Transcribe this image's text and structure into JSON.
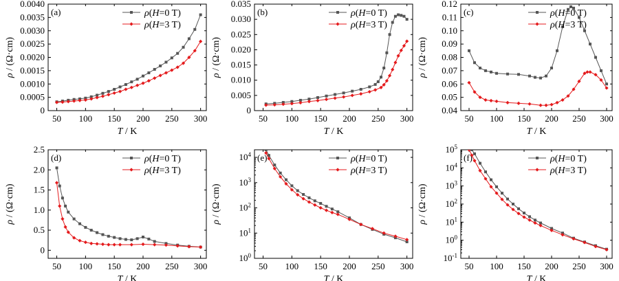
{
  "colors": {
    "zero_field": "#555555",
    "three_tesla": "#e41a1c"
  },
  "charts": [
    {
      "id": "a",
      "panel_label": "(a)",
      "type": "line",
      "yscale": "linear",
      "xlabel": "T / K",
      "ylabel": "ρ / (Ω·cm)",
      "xlim": [
        35,
        310
      ],
      "ylim": [
        0,
        0.004
      ],
      "xticks": [
        50,
        100,
        150,
        200,
        250,
        300
      ],
      "xtick_labels": [
        "50",
        "100",
        "150",
        "200",
        "250",
        "300"
      ],
      "yticks": [
        0,
        0.0005,
        0.001,
        0.0015,
        0.002,
        0.0025,
        0.003,
        0.0035,
        0.004
      ],
      "ytick_labels": [
        "0",
        "0.0005",
        "0.0010",
        "0.0015",
        "0.0020",
        "0.0025",
        "0.0030",
        "0.0035",
        "0.0040"
      ],
      "legend": {
        "position": "top-right",
        "entries": [
          "ρ(H=0 T)",
          "ρ(H=3 T)"
        ]
      },
      "series": [
        {
          "name": "ρ(H=0 T)",
          "x": [
            50,
            60,
            70,
            80,
            90,
            100,
            110,
            120,
            130,
            140,
            150,
            160,
            170,
            180,
            190,
            200,
            210,
            220,
            230,
            240,
            250,
            260,
            270,
            280,
            290,
            300
          ],
          "y": [
            0.00033,
            0.00036,
            0.00039,
            0.00042,
            0.00044,
            0.00047,
            0.00052,
            0.00058,
            0.00065,
            0.00072,
            0.0008,
            0.00089,
            0.00098,
            0.00108,
            0.00118,
            0.0013,
            0.00142,
            0.00155,
            0.00168,
            0.00182,
            0.00198,
            0.00215,
            0.00238,
            0.0027,
            0.00305,
            0.0036
          ]
        },
        {
          "name": "ρ(H=3 T)",
          "x": [
            50,
            60,
            70,
            80,
            90,
            100,
            110,
            120,
            130,
            140,
            150,
            160,
            170,
            180,
            190,
            200,
            210,
            220,
            230,
            240,
            250,
            260,
            270,
            280,
            290,
            300
          ],
          "y": [
            0.00031,
            0.00032,
            0.00034,
            0.00036,
            0.00038,
            0.0004,
            0.00044,
            0.00049,
            0.00054,
            0.0006,
            0.00066,
            0.00072,
            0.0008,
            0.00087,
            0.00095,
            0.00103,
            0.00112,
            0.00122,
            0.00132,
            0.00142,
            0.00152,
            0.00163,
            0.00178,
            0.002,
            0.00225,
            0.0026
          ]
        }
      ]
    },
    {
      "id": "b",
      "panel_label": "(b)",
      "type": "line",
      "yscale": "linear",
      "xlabel": "T / K",
      "ylabel": "ρ / (Ω·cm)",
      "xlim": [
        35,
        310
      ],
      "ylim": [
        0,
        0.035
      ],
      "xticks": [
        50,
        100,
        150,
        200,
        250,
        300
      ],
      "xtick_labels": [
        "50",
        "100",
        "150",
        "200",
        "250",
        "300"
      ],
      "yticks": [
        0,
        0.005,
        0.01,
        0.015,
        0.02,
        0.025,
        0.03,
        0.035
      ],
      "ytick_labels": [
        "0",
        "0.005",
        "0.010",
        "0.015",
        "0.020",
        "0.025",
        "0.030",
        "0.035"
      ],
      "legend": {
        "position": "top-right",
        "entries": [
          "ρ(H=0 T)",
          "ρ(H=3 T)"
        ]
      },
      "series": [
        {
          "name": "ρ(H=0 T)",
          "x": [
            55,
            70,
            85,
            100,
            115,
            130,
            145,
            160,
            175,
            190,
            205,
            220,
            235,
            245,
            250,
            255,
            260,
            265,
            270,
            275,
            280,
            285,
            290,
            295,
            300
          ],
          "y": [
            0.0022,
            0.0024,
            0.0027,
            0.003,
            0.0034,
            0.0038,
            0.0043,
            0.0048,
            0.0053,
            0.0058,
            0.0064,
            0.007,
            0.0078,
            0.0086,
            0.0095,
            0.011,
            0.014,
            0.019,
            0.025,
            0.029,
            0.031,
            0.0315,
            0.0313,
            0.031,
            0.03
          ]
        },
        {
          "name": "ρ(H=3 T)",
          "x": [
            55,
            70,
            85,
            100,
            115,
            130,
            145,
            160,
            175,
            190,
            205,
            220,
            235,
            245,
            255,
            260,
            265,
            270,
            275,
            280,
            285,
            290,
            295,
            300
          ],
          "y": [
            0.0018,
            0.0019,
            0.0021,
            0.0023,
            0.0026,
            0.003,
            0.0033,
            0.0037,
            0.0041,
            0.0045,
            0.005,
            0.0055,
            0.0062,
            0.0068,
            0.0076,
            0.0085,
            0.0098,
            0.0115,
            0.0135,
            0.0158,
            0.018,
            0.0198,
            0.0213,
            0.0228
          ]
        }
      ]
    },
    {
      "id": "c",
      "panel_label": "(c)",
      "type": "line",
      "yscale": "linear",
      "xlabel": "T / K",
      "ylabel": "ρ / (Ω·cm)",
      "xlim": [
        35,
        310
      ],
      "ylim": [
        0.04,
        0.12
      ],
      "xticks": [
        50,
        100,
        150,
        200,
        250,
        300
      ],
      "xtick_labels": [
        "50",
        "100",
        "150",
        "200",
        "250",
        "300"
      ],
      "yticks": [
        0.04,
        0.05,
        0.06,
        0.07,
        0.08,
        0.09,
        0.1,
        0.11,
        0.12
      ],
      "ytick_labels": [
        "0.04",
        "0.05",
        "0.06",
        "0.07",
        "0.08",
        "0.09",
        "0.10",
        "0.11",
        "0.12"
      ],
      "legend": {
        "position": "top-right",
        "entries": [
          "ρ(H=0 T)",
          "ρ(H=3 T)"
        ]
      },
      "series": [
        {
          "name": "ρ(H=0 T)",
          "x": [
            50,
            60,
            70,
            80,
            90,
            100,
            120,
            140,
            160,
            170,
            180,
            190,
            200,
            210,
            220,
            230,
            235,
            240,
            250,
            260,
            270,
            280,
            290,
            300
          ],
          "y": [
            0.085,
            0.076,
            0.072,
            0.07,
            0.069,
            0.068,
            0.0675,
            0.0672,
            0.066,
            0.065,
            0.0645,
            0.066,
            0.072,
            0.085,
            0.103,
            0.116,
            0.118,
            0.117,
            0.11,
            0.1,
            0.09,
            0.08,
            0.07,
            0.06
          ]
        },
        {
          "name": "ρ(H=3 T)",
          "x": [
            50,
            60,
            70,
            80,
            90,
            100,
            120,
            140,
            160,
            180,
            190,
            200,
            210,
            220,
            230,
            240,
            250,
            260,
            265,
            270,
            280,
            290,
            300
          ],
          "y": [
            0.061,
            0.054,
            0.05,
            0.048,
            0.0475,
            0.047,
            0.046,
            0.0455,
            0.045,
            0.044,
            0.044,
            0.0445,
            0.046,
            0.048,
            0.051,
            0.056,
            0.062,
            0.068,
            0.069,
            0.069,
            0.067,
            0.063,
            0.057
          ]
        }
      ]
    },
    {
      "id": "d",
      "panel_label": "(d)",
      "type": "line",
      "yscale": "linear",
      "xlabel": "T / K",
      "ylabel": "ρ / (Ω·cm)",
      "xlim": [
        35,
        310
      ],
      "ylim": [
        -0.2,
        2.5
      ],
      "xticks": [
        50,
        100,
        150,
        200,
        250,
        300
      ],
      "xtick_labels": [
        "50",
        "100",
        "150",
        "200",
        "250",
        "300"
      ],
      "yticks": [
        0,
        0.5,
        1.0,
        1.5,
        2.0,
        2.5
      ],
      "ytick_labels": [
        "0",
        "0.5",
        "1.0",
        "1.5",
        "2.0",
        "2.5"
      ],
      "legend": {
        "position": "top-right",
        "entries": [
          "ρ(H=0 T)",
          "ρ(H=3 T)"
        ]
      },
      "series": [
        {
          "name": "ρ(H=0 T)",
          "x": [
            50,
            55,
            60,
            65,
            70,
            80,
            90,
            100,
            110,
            120,
            130,
            140,
            150,
            160,
            170,
            180,
            190,
            200,
            210,
            220,
            240,
            260,
            280,
            300
          ],
          "y": [
            2.05,
            1.6,
            1.3,
            1.1,
            0.95,
            0.78,
            0.66,
            0.57,
            0.5,
            0.44,
            0.39,
            0.35,
            0.32,
            0.29,
            0.27,
            0.26,
            0.29,
            0.33,
            0.28,
            0.22,
            0.17,
            0.13,
            0.1,
            0.08
          ]
        },
        {
          "name": "ρ(H=3 T)",
          "x": [
            50,
            55,
            60,
            65,
            70,
            80,
            90,
            100,
            110,
            120,
            130,
            140,
            150,
            160,
            180,
            200,
            220,
            240,
            260,
            280,
            300
          ],
          "y": [
            1.68,
            1.1,
            0.78,
            0.58,
            0.45,
            0.31,
            0.24,
            0.2,
            0.17,
            0.16,
            0.15,
            0.14,
            0.14,
            0.14,
            0.14,
            0.15,
            0.14,
            0.13,
            0.11,
            0.09,
            0.08
          ]
        }
      ]
    },
    {
      "id": "e",
      "panel_label": "(e)",
      "type": "line",
      "yscale": "log",
      "xlabel": "T / K",
      "ylabel": "ρ / (Ω·cm)",
      "xlim": [
        35,
        310
      ],
      "ylim": [
        1,
        20000
      ],
      "xticks": [
        50,
        100,
        150,
        200,
        250,
        300
      ],
      "xtick_labels": [
        "50",
        "100",
        "150",
        "200",
        "250",
        "300"
      ],
      "yticks": [
        1,
        10,
        100,
        1000,
        10000
      ],
      "ytick_labels": [
        "10^0",
        "10^1",
        "10^2",
        "10^3",
        "10^4"
      ],
      "legend": {
        "position": "top-right",
        "entries": [
          "ρ(H=0 T)",
          "ρ(H=3 T)"
        ]
      },
      "series": [
        {
          "name": "ρ(H=0 T)",
          "x": [
            55,
            60,
            70,
            80,
            90,
            100,
            110,
            120,
            130,
            140,
            150,
            160,
            170,
            180,
            200,
            220,
            240,
            260,
            280,
            300
          ],
          "y": [
            20000,
            12000,
            5000,
            2400,
            1300,
            750,
            480,
            340,
            250,
            190,
            150,
            115,
            90,
            70,
            40,
            22,
            14,
            9,
            6.5,
            4.5
          ]
        },
        {
          "name": "ρ(H=3 T)",
          "x": [
            55,
            60,
            70,
            80,
            90,
            100,
            110,
            120,
            130,
            140,
            150,
            160,
            170,
            180,
            200,
            220,
            240,
            260,
            280,
            300
          ],
          "y": [
            15000,
            9000,
            3600,
            1700,
            900,
            520,
            330,
            230,
            170,
            130,
            100,
            80,
            65,
            55,
            35,
            22,
            15,
            10,
            7.5,
            5.5
          ]
        }
      ]
    },
    {
      "id": "f",
      "panel_label": "(f)",
      "type": "line",
      "yscale": "log",
      "xlabel": "T / K",
      "ylabel": "ρ / (Ω·cm)",
      "xlim": [
        35,
        310
      ],
      "ylim": [
        0.1,
        100000
      ],
      "xticks": [
        50,
        100,
        150,
        200,
        250,
        300
      ],
      "xtick_labels": [
        "50",
        "100",
        "150",
        "200",
        "250",
        "300"
      ],
      "yticks": [
        0.1,
        1,
        10,
        100,
        1000,
        10000,
        100000
      ],
      "ytick_labels": [
        "10^-1",
        "10^0",
        "10^1",
        "10^2",
        "10^3",
        "10^4",
        "10^5"
      ],
      "legend": {
        "position": "top-right",
        "entries": [
          "ρ(H=0 T)",
          "ρ(H=3 T)"
        ]
      },
      "series": [
        {
          "name": "ρ(H=0 T)",
          "x": [
            55,
            60,
            70,
            80,
            90,
            100,
            110,
            120,
            130,
            140,
            150,
            160,
            170,
            180,
            200,
            220,
            240,
            260,
            280,
            300
          ],
          "y": [
            100000,
            60000,
            18000,
            6000,
            2200,
            900,
            400,
            190,
            100,
            55,
            32,
            20,
            13,
            9,
            4.5,
            2.5,
            1.3,
            0.8,
            0.5,
            0.32
          ]
        },
        {
          "name": "ρ(H=3 T)",
          "x": [
            50,
            55,
            60,
            70,
            80,
            90,
            100,
            110,
            120,
            130,
            140,
            150,
            160,
            170,
            180,
            200,
            220,
            240,
            260,
            280,
            300
          ],
          "y": [
            100000,
            50000,
            25000,
            7000,
            2500,
            900,
            400,
            180,
            90,
            50,
            30,
            19,
            13,
            9,
            6.5,
            3.5,
            2.0,
            1.2,
            0.75,
            0.45,
            0.3
          ]
        }
      ]
    }
  ]
}
